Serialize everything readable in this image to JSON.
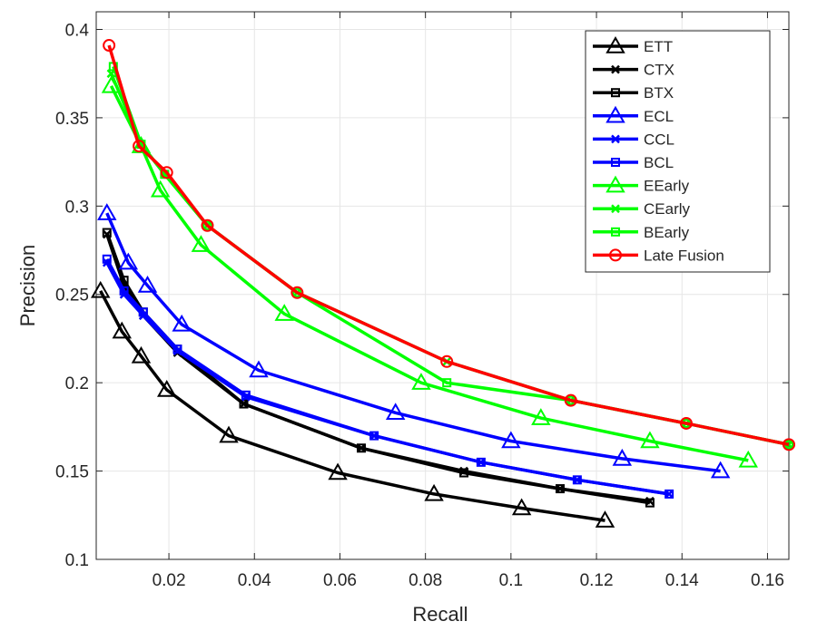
{
  "chart_data": {
    "type": "line",
    "title": "",
    "xlabel": "Recall",
    "ylabel": "Precision",
    "xlim": [
      0.003,
      0.165
    ],
    "ylim": [
      0.1,
      0.41
    ],
    "xticks": [
      0.02,
      0.04,
      0.06,
      0.08,
      0.1,
      0.12,
      0.14,
      0.16
    ],
    "xtick_labels": [
      "0.02",
      "0.04",
      "0.06",
      "0.08",
      "0.1",
      "0.12",
      "0.14",
      "0.16"
    ],
    "yticks": [
      0.1,
      0.15,
      0.2,
      0.25,
      0.3,
      0.35,
      0.4
    ],
    "ytick_labels": [
      "0.1",
      "0.15",
      "0.2",
      "0.25",
      "0.3",
      "0.35",
      "0.4"
    ],
    "grid": true,
    "legend_position": "top-right",
    "series": [
      {
        "name": "ETT",
        "color": "#000000",
        "marker": "triangle",
        "x": [
          0.004,
          0.009,
          0.0135,
          0.0195,
          0.034,
          0.0595,
          0.082,
          0.1025,
          0.122
        ],
        "y": [
          0.252,
          0.229,
          0.215,
          0.196,
          0.17,
          0.149,
          0.137,
          0.129,
          0.122
        ]
      },
      {
        "name": "CTX",
        "color": "#000000",
        "marker": "x",
        "x": [
          0.0055,
          0.0095,
          0.014,
          0.022,
          0.0375,
          0.065,
          0.089,
          0.1115,
          0.1325
        ],
        "y": [
          0.284,
          0.255,
          0.238,
          0.217,
          0.188,
          0.163,
          0.15,
          0.14,
          0.133
        ]
      },
      {
        "name": "BTX",
        "color": "#000000",
        "marker": "square",
        "x": [
          0.0055,
          0.0095,
          0.014,
          0.022,
          0.0375,
          0.065,
          0.089,
          0.1115,
          0.1325
        ],
        "y": [
          0.285,
          0.258,
          0.24,
          0.219,
          0.188,
          0.163,
          0.149,
          0.14,
          0.132
        ]
      },
      {
        "name": "ECL",
        "color": "#0000ff",
        "marker": "triangle",
        "x": [
          0.0055,
          0.0105,
          0.015,
          0.023,
          0.041,
          0.073,
          0.1,
          0.126,
          0.149
        ],
        "y": [
          0.296,
          0.268,
          0.255,
          0.233,
          0.207,
          0.183,
          0.167,
          0.157,
          0.15
        ]
      },
      {
        "name": "CCL",
        "color": "#0000ff",
        "marker": "x",
        "x": [
          0.0055,
          0.0095,
          0.014,
          0.022,
          0.038,
          0.068,
          0.093,
          0.1155,
          0.137
        ],
        "y": [
          0.268,
          0.25,
          0.238,
          0.218,
          0.192,
          0.17,
          0.155,
          0.145,
          0.137
        ]
      },
      {
        "name": "BCL",
        "color": "#0000ff",
        "marker": "square",
        "x": [
          0.0055,
          0.0095,
          0.014,
          0.022,
          0.038,
          0.068,
          0.093,
          0.1155,
          0.137
        ],
        "y": [
          0.27,
          0.252,
          0.24,
          0.219,
          0.193,
          0.17,
          0.155,
          0.145,
          0.137
        ]
      },
      {
        "name": "EEarly",
        "color": "#00ff00",
        "marker": "triangle",
        "x": [
          0.0065,
          0.0135,
          0.018,
          0.0275,
          0.047,
          0.079,
          0.107,
          0.1325,
          0.1555
        ],
        "y": [
          0.368,
          0.334,
          0.309,
          0.278,
          0.239,
          0.2,
          0.18,
          0.167,
          0.156
        ]
      },
      {
        "name": "CEarly",
        "color": "#00ff00",
        "marker": "x",
        "x": [
          0.0065,
          0.0135,
          0.019,
          0.029,
          0.05,
          0.085,
          0.114,
          0.141,
          0.165
        ],
        "y": [
          0.375,
          0.335,
          0.318,
          0.289,
          0.251,
          0.212,
          0.19,
          0.177,
          0.165
        ]
      },
      {
        "name": "BEarly",
        "color": "#00ff00",
        "marker": "square",
        "x": [
          0.007,
          0.0135,
          0.019,
          0.029,
          0.05,
          0.085,
          0.114,
          0.141,
          0.165
        ],
        "y": [
          0.379,
          0.335,
          0.318,
          0.289,
          0.251,
          0.2,
          0.19,
          0.177,
          0.165
        ]
      },
      {
        "name": "Late Fusion",
        "color": "#ff0000",
        "marker": "circle",
        "x": [
          0.006,
          0.013,
          0.0195,
          0.029,
          0.05,
          0.085,
          0.114,
          0.141,
          0.165
        ],
        "y": [
          0.391,
          0.334,
          0.319,
          0.289,
          0.251,
          0.212,
          0.19,
          0.177,
          0.165
        ]
      }
    ]
  }
}
